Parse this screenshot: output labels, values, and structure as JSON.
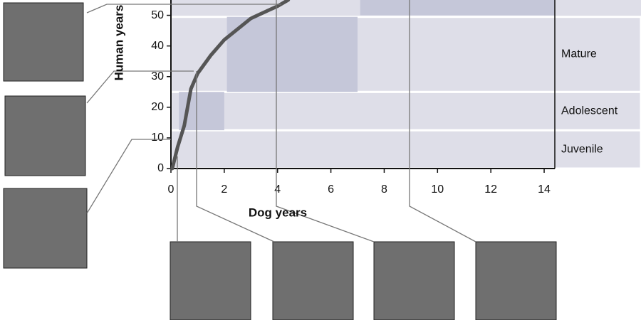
{
  "chart_data": {
    "type": "line",
    "x_label": "Dog years",
    "y_label": "Human years",
    "x": [
      0.05,
      0.25,
      0.5,
      0.75,
      1,
      1.5,
      2,
      3,
      4,
      4.4
    ],
    "series": [
      {
        "color": "#555555",
        "values": [
          0,
          7,
          14,
          26,
          31,
          37,
          42,
          49,
          53,
          55
        ]
      }
    ],
    "xlim": [
      0,
      14.4
    ],
    "ylim": [
      0,
      55
    ],
    "xticks": [
      0,
      2,
      4,
      6,
      8,
      10,
      12,
      14
    ],
    "yticks": [
      0,
      10,
      20,
      30,
      40,
      50
    ],
    "stages": [
      {
        "label": "Juvenile",
        "y": [
          0,
          12.5
        ]
      },
      {
        "label": "Adolescent",
        "y": [
          12.5,
          25
        ]
      },
      {
        "label": "Mature",
        "y": [
          25,
          49.5
        ]
      }
    ],
    "highlights": [
      {
        "x": [
          0.3,
          2
        ],
        "y": [
          12.5,
          25
        ]
      },
      {
        "x": [
          2.1,
          7
        ],
        "y": [
          25,
          49.5
        ]
      },
      {
        "x": [
          7.1,
          14.4
        ],
        "y": [
          50,
          55
        ]
      }
    ]
  }
}
